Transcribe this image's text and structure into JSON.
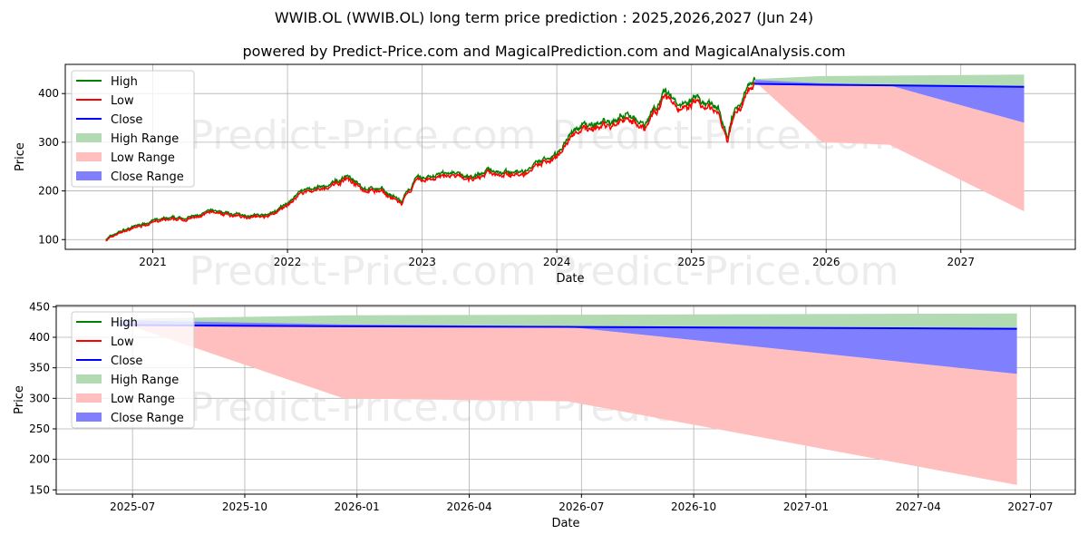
{
  "title": "WWIB.OL (WWIB.OL) long term price prediction : 2025,2026,2027 (Jun 24)",
  "subtitle": "powered by Predict-Price.com and MagicalPrediction.com and MagicalAnalysis.com",
  "watermark": "Predict-Price.com",
  "colors": {
    "high": "#008000",
    "low": "#ff0000",
    "close": "#0000ff",
    "high_range": "#b3dbb3",
    "low_range": "#ffbfbf",
    "close_range": "#8080ff"
  },
  "chart_data": [
    {
      "type": "line",
      "xlabel": "Date",
      "ylabel": "Price",
      "ylim": [
        80,
        460
      ],
      "xlim": [
        2020.35,
        2027.85
      ],
      "xticks": [
        {
          "v": 2021,
          "label": "2021"
        },
        {
          "v": 2022,
          "label": "2022"
        },
        {
          "v": 2023,
          "label": "2023"
        },
        {
          "v": 2024,
          "label": "2024"
        },
        {
          "v": 2025,
          "label": "2025"
        },
        {
          "v": 2026,
          "label": "2026"
        },
        {
          "v": 2027,
          "label": "2027"
        }
      ],
      "yticks": [
        100,
        200,
        300,
        400
      ],
      "grid": true,
      "legend": "top-left",
      "legend_entries": [
        "High",
        "Low",
        "Close",
        "High Range",
        "Low Range",
        "Close Range"
      ],
      "history_anchors": [
        [
          2020.65,
          100
        ],
        [
          2020.75,
          115
        ],
        [
          2021.0,
          138
        ],
        [
          2021.3,
          145
        ],
        [
          2021.45,
          158
        ],
        [
          2021.6,
          150
        ],
        [
          2021.85,
          148
        ],
        [
          2022.0,
          170
        ],
        [
          2022.1,
          200
        ],
        [
          2022.3,
          205
        ],
        [
          2022.45,
          230
        ],
        [
          2022.55,
          205
        ],
        [
          2022.7,
          200
        ],
        [
          2022.85,
          175
        ],
        [
          2022.95,
          220
        ],
        [
          2023.2,
          235
        ],
        [
          2023.35,
          225
        ],
        [
          2023.5,
          240
        ],
        [
          2023.75,
          235
        ],
        [
          2023.9,
          260
        ],
        [
          2024.0,
          275
        ],
        [
          2024.1,
          315
        ],
        [
          2024.2,
          330
        ],
        [
          2024.4,
          340
        ],
        [
          2024.55,
          355
        ],
        [
          2024.65,
          330
        ],
        [
          2024.8,
          400
        ],
        [
          2024.9,
          375
        ],
        [
          2025.0,
          385
        ],
        [
          2025.1,
          375
        ],
        [
          2025.2,
          365
        ],
        [
          2025.27,
          300
        ],
        [
          2025.3,
          345
        ],
        [
          2025.4,
          400
        ],
        [
          2025.47,
          428
        ]
      ]
    },
    {
      "type": "area",
      "xlabel": "Date",
      "ylabel": "Price",
      "ylim": [
        143,
        452
      ],
      "xlim": [
        2025.33,
        2027.6
      ],
      "xticks": [
        {
          "v": 2025.5,
          "label": "2025-07"
        },
        {
          "v": 2025.75,
          "label": "2025-10"
        },
        {
          "v": 2026.0,
          "label": "2026-01"
        },
        {
          "v": 2026.25,
          "label": "2026-04"
        },
        {
          "v": 2026.5,
          "label": "2026-07"
        },
        {
          "v": 2026.75,
          "label": "2026-10"
        },
        {
          "v": 2027.0,
          "label": "2027-01"
        },
        {
          "v": 2027.25,
          "label": "2027-04"
        },
        {
          "v": 2027.5,
          "label": "2027-07"
        }
      ],
      "yticks": [
        150,
        200,
        250,
        300,
        350,
        400,
        450
      ],
      "grid": true,
      "legend": "top-left",
      "legend_entries": [
        "High",
        "Low",
        "Close",
        "High Range",
        "Low Range",
        "Close Range"
      ]
    }
  ],
  "forecast": {
    "t": [
      2025.47,
      2025.97,
      2026.47,
      2027.47
    ],
    "close": [
      420,
      418,
      417,
      414
    ],
    "high_upper": [
      430,
      436,
      437,
      439
    ],
    "close_upper": [
      428,
      421,
      418,
      414
    ],
    "close_lower": [
      420,
      418,
      417,
      340
    ],
    "low_upper": [
      420,
      418,
      417,
      340
    ],
    "low_lower": [
      425,
      300,
      295,
      158
    ]
  }
}
